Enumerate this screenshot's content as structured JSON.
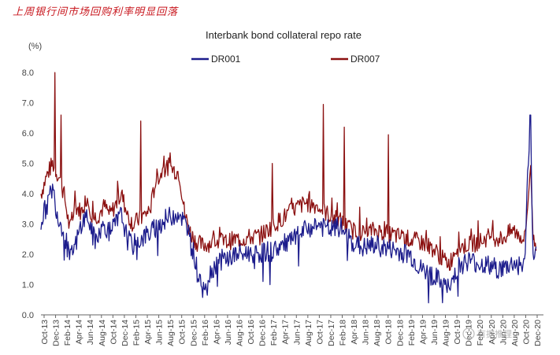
{
  "caption": "上周银行间市场回购利率明显回落",
  "watermark": "有据推理",
  "chart_data": {
    "type": "line",
    "title": "Interbank bond collateral repo rate",
    "ylabel": "(%)",
    "xlabel": "",
    "ylim": [
      0,
      8.5
    ],
    "yticks": [
      "0.0",
      "1.0",
      "2.0",
      "3.0",
      "4.0",
      "5.0",
      "6.0",
      "7.0",
      "8.0"
    ],
    "xlim": [
      0,
      87
    ],
    "categories": [
      "Oct-13",
      "Dec-13",
      "Feb-14",
      "Apr-14",
      "Jun-14",
      "Aug-14",
      "Oct-14",
      "Dec-14",
      "Feb-15",
      "Apr-15",
      "Jun-15",
      "Aug-15",
      "Oct-15",
      "Dec-15",
      "Feb-16",
      "Apr-16",
      "Jun-16",
      "Aug-16",
      "Oct-16",
      "Dec-16",
      "Feb-17",
      "Apr-17",
      "Jun-17",
      "Aug-17",
      "Oct-17",
      "Dec-17",
      "Feb-18",
      "Apr-18",
      "Jun-18",
      "Aug-18",
      "Oct-18",
      "Dec-18",
      "Feb-19",
      "Apr-19",
      "Jun-19",
      "Aug-19",
      "Oct-19",
      "Dec-19",
      "Feb-20",
      "Apr-20",
      "Jun-20",
      "Aug-20",
      "Oct-20",
      "Dec-20"
    ],
    "legend_position": "top",
    "series": [
      {
        "name": "DR001",
        "color": "#1c1c8c",
        "x": [
          0,
          1,
          2,
          3,
          4,
          5,
          6,
          7,
          8,
          9,
          10,
          11,
          12,
          14,
          15,
          16,
          18,
          19,
          20,
          22,
          24,
          25,
          26,
          27,
          28,
          29,
          30,
          31,
          32,
          33,
          34,
          35,
          36,
          38,
          40,
          42,
          44,
          46,
          48,
          50,
          52,
          54,
          56,
          58,
          60,
          62,
          64,
          66,
          68,
          70,
          71,
          72,
          74,
          76,
          78,
          80,
          82,
          84,
          84.5,
          85,
          85.5,
          86
        ],
        "values": [
          3.1,
          3.6,
          4.2,
          3.2,
          2.8,
          1.8,
          2.3,
          3.0,
          3.3,
          2.6,
          2.6,
          3.0,
          2.7,
          3.3,
          2.5,
          2.3,
          2.6,
          2.7,
          2.9,
          3.2,
          3.4,
          3.0,
          2.5,
          1.6,
          1.0,
          1.2,
          1.6,
          1.8,
          1.85,
          1.9,
          2.0,
          2.0,
          2.05,
          2.05,
          2.1,
          2.3,
          2.5,
          2.8,
          3.0,
          2.8,
          2.9,
          2.4,
          2.2,
          2.3,
          2.2,
          2.1,
          2.0,
          1.5,
          1.3,
          1.0,
          0.8,
          1.5,
          1.8,
          1.7,
          1.6,
          1.5,
          1.7,
          1.6,
          4.5,
          6.6,
          1.5,
          2.0
        ],
        "dense_noise_amplitude": 0.35
      },
      {
        "name": "DR007",
        "color": "#8b1010",
        "x": [
          0,
          1,
          2,
          3,
          4,
          5,
          6,
          7,
          8,
          9,
          10,
          11,
          12,
          14,
          15,
          16,
          18,
          19,
          20,
          22,
          24,
          25,
          26,
          27,
          28,
          29,
          30,
          31,
          32,
          33,
          34,
          35,
          36,
          38,
          40,
          42,
          44,
          46,
          48,
          50,
          52,
          54,
          56,
          58,
          60,
          62,
          64,
          66,
          68,
          70,
          71,
          72,
          74,
          76,
          78,
          80,
          82,
          84,
          84.5,
          85,
          85.5,
          86
        ],
        "values": [
          4.0,
          4.6,
          5.0,
          4.6,
          4.0,
          2.8,
          3.6,
          3.4,
          3.9,
          3.2,
          3.3,
          3.6,
          3.3,
          4.0,
          3.3,
          3.0,
          3.3,
          3.5,
          4.5,
          4.9,
          4.7,
          3.3,
          2.7,
          2.4,
          2.3,
          2.35,
          2.4,
          2.45,
          2.4,
          2.45,
          2.5,
          2.5,
          2.55,
          2.6,
          2.9,
          3.2,
          3.5,
          3.7,
          3.6,
          3.3,
          3.1,
          2.8,
          2.7,
          2.8,
          2.7,
          2.6,
          2.5,
          2.4,
          2.2,
          1.8,
          1.7,
          2.2,
          2.3,
          2.4,
          2.6,
          2.5,
          2.8,
          2.5,
          3.5,
          5.0,
          2.5,
          2.3
        ],
        "dense_noise_amplitude": 0.3
      }
    ],
    "spikes": [
      {
        "series": "DR007",
        "x": 2.4,
        "value": 8.0
      },
      {
        "series": "DR007",
        "x": 3.5,
        "value": 6.6
      },
      {
        "series": "DR007",
        "x": 17.3,
        "value": 6.4
      },
      {
        "series": "DR007",
        "x": 40.2,
        "value": 5.0
      },
      {
        "series": "DR007",
        "x": 49.1,
        "value": 6.95
      },
      {
        "series": "DR007",
        "x": 52.7,
        "value": 6.2
      },
      {
        "series": "DR007",
        "x": 60.3,
        "value": 5.95
      },
      {
        "series": "DR001",
        "x": 85.0,
        "value": 6.6
      }
    ]
  }
}
